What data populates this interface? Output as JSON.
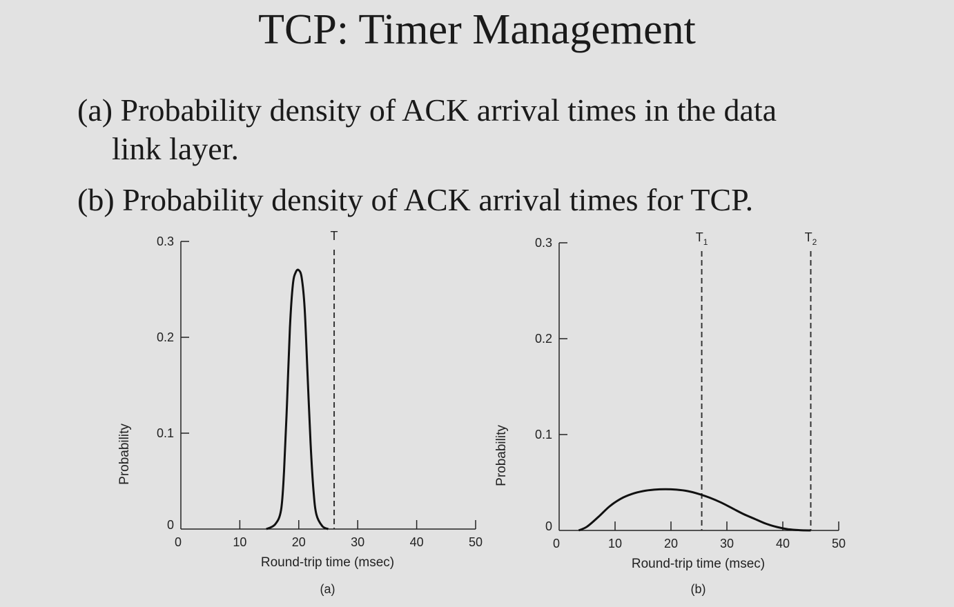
{
  "slide": {
    "title": "TCP: Timer Management",
    "bullet_a_line1": "(a) Probability density of ACK arrival times in the data",
    "bullet_a_line2": "link layer.",
    "bullet_b": "(b) Probability density of  ACK arrival times for TCP."
  },
  "colors": {
    "background": "#e2e2e2",
    "ink": "#1a1a1a"
  },
  "chart_data": [
    {
      "type": "line",
      "caption": "(a)",
      "xlabel": "Round-trip time (msec)",
      "ylabel": "Probability",
      "xlim": [
        0,
        50
      ],
      "ylim": [
        0,
        0.3
      ],
      "x_ticks": [
        0,
        10,
        20,
        30,
        40,
        50
      ],
      "y_ticks": [
        0,
        0.1,
        0.2,
        0.3
      ],
      "x_tick_labels": [
        "0",
        "10",
        "20",
        "30",
        "40",
        "50"
      ],
      "y_tick_labels": [
        "0",
        "0.1",
        "0.2",
        "0.3"
      ],
      "timers": [
        {
          "label": "T",
          "sub": "",
          "x": 26
        }
      ],
      "series": [
        {
          "x": [
            14.5,
            16,
            17,
            17.5,
            18,
            18.5,
            19,
            19.5,
            20,
            20.5,
            21,
            21.5,
            22,
            22.5,
            23,
            24,
            25
          ],
          "y": [
            0,
            0.005,
            0.02,
            0.06,
            0.13,
            0.21,
            0.255,
            0.268,
            0.27,
            0.262,
            0.23,
            0.16,
            0.09,
            0.04,
            0.015,
            0.003,
            0
          ]
        }
      ]
    },
    {
      "type": "line",
      "caption": "(b)",
      "xlabel": "Round-trip time (msec)",
      "ylabel": "Probability",
      "xlim": [
        0,
        50
      ],
      "ylim": [
        0,
        0.3
      ],
      "x_ticks": [
        0,
        10,
        20,
        30,
        40,
        50
      ],
      "y_ticks": [
        0,
        0.1,
        0.2,
        0.3
      ],
      "x_tick_labels": [
        "0",
        "10",
        "20",
        "30",
        "40",
        "50"
      ],
      "y_tick_labels": [
        "0",
        "0.1",
        "0.2",
        "0.3"
      ],
      "timers": [
        {
          "label": "T",
          "sub": "1",
          "x": 25.5
        },
        {
          "label": "T",
          "sub": "2",
          "x": 45
        }
      ],
      "series": [
        {
          "x": [
            3.5,
            5,
            7,
            9,
            11,
            13,
            15,
            17,
            19,
            21,
            23,
            25,
            27,
            29,
            31,
            33,
            35,
            37,
            39,
            41,
            43,
            45
          ],
          "y": [
            0,
            0.004,
            0.014,
            0.025,
            0.033,
            0.038,
            0.041,
            0.0425,
            0.043,
            0.0425,
            0.041,
            0.038,
            0.034,
            0.029,
            0.023,
            0.017,
            0.012,
            0.007,
            0.0035,
            0.0012,
            0.0003,
            0
          ]
        }
      ]
    }
  ]
}
